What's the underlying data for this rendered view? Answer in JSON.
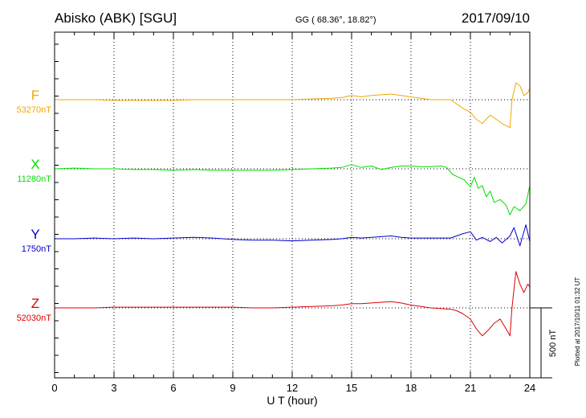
{
  "chart_data": {
    "type": "line",
    "station": "Abisko (ABK)  [SGU]",
    "coords": "GG ( 68.36°,  18.82°)",
    "date": "2017/09/10",
    "xlabel": "U T (hour)",
    "xlim": [
      0,
      24
    ],
    "x_ticks": [
      "0",
      "3",
      "6",
      "9",
      "12",
      "15",
      "18",
      "21",
      "24"
    ],
    "grid": true,
    "scale_bar": "500 nT",
    "plotted_note": "Plotted at 2017/10/11 01:32 UT",
    "colors": {
      "F": "#f0a800",
      "X": "#00e000",
      "Y": "#0000d0",
      "Z": "#e00000"
    },
    "series": [
      {
        "name": "F",
        "baseline_label": "53270nT",
        "baseline": 53270,
        "color": "#f0a800",
        "x": [
          0,
          1,
          2,
          3,
          4,
          5,
          6,
          7,
          8,
          9,
          10,
          11,
          12,
          13,
          14,
          14.5,
          15,
          15.5,
          16,
          16.5,
          17,
          17.5,
          18,
          18.5,
          19,
          19.5,
          20,
          20.3,
          20.6,
          21,
          21.3,
          21.6,
          22,
          22.3,
          22.6,
          23,
          23.1,
          23.3,
          23.5,
          23.7,
          23.9,
          24
        ],
        "values": [
          0,
          0,
          0,
          -5,
          -5,
          -5,
          -5,
          0,
          0,
          0,
          0,
          0,
          0,
          5,
          10,
          15,
          30,
          20,
          30,
          35,
          40,
          30,
          20,
          10,
          0,
          0,
          0,
          -30,
          -60,
          -90,
          -140,
          -170,
          -110,
          -140,
          -170,
          -200,
          0,
          120,
          100,
          30,
          50,
          80
        ]
      },
      {
        "name": "X",
        "baseline_label": "11280nT",
        "baseline": 11280,
        "color": "#00e000",
        "x": [
          0,
          1,
          2,
          3,
          4,
          5,
          6,
          7,
          8,
          9,
          10,
          11,
          12,
          13,
          14,
          14.5,
          15,
          15.5,
          16,
          16.5,
          17,
          17.5,
          18,
          18.5,
          19,
          19.5,
          19.8,
          20.1,
          20.4,
          20.7,
          21,
          21.2,
          21.4,
          21.6,
          21.8,
          22,
          22.2,
          22.5,
          22.8,
          23,
          23.2,
          23.5,
          23.8,
          24
        ],
        "values": [
          0,
          5,
          0,
          0,
          -5,
          -5,
          -10,
          -5,
          -10,
          -10,
          -10,
          -10,
          -5,
          0,
          5,
          10,
          30,
          10,
          20,
          -5,
          10,
          20,
          20,
          15,
          15,
          20,
          10,
          -40,
          -60,
          -80,
          -130,
          -60,
          -140,
          -120,
          -200,
          -160,
          -240,
          -220,
          -260,
          -330,
          -270,
          -300,
          -250,
          -120
        ]
      },
      {
        "name": "Y",
        "baseline_label": "1750nT",
        "baseline": 1750,
        "color": "#0000d0",
        "x": [
          0,
          1,
          2,
          3,
          4,
          5,
          6,
          7,
          8,
          9,
          10,
          11,
          12,
          13,
          14,
          14.5,
          15,
          15.5,
          16,
          16.5,
          17,
          17.5,
          18,
          18.5,
          19,
          19.5,
          20,
          20.3,
          20.6,
          21,
          21.3,
          21.6,
          22,
          22.3,
          22.6,
          23,
          23.2,
          23.5,
          23.8,
          24
        ],
        "values": [
          0,
          0,
          5,
          0,
          5,
          0,
          5,
          10,
          5,
          -5,
          -10,
          -10,
          -15,
          -10,
          -5,
          0,
          10,
          5,
          10,
          15,
          20,
          10,
          5,
          5,
          5,
          5,
          5,
          20,
          35,
          50,
          -10,
          10,
          -20,
          10,
          -30,
          20,
          80,
          -50,
          100,
          -20
        ]
      },
      {
        "name": "Z",
        "baseline_label": "52030nT",
        "baseline": 52030,
        "color": "#e00000",
        "x": [
          0,
          1,
          2,
          3,
          4,
          5,
          6,
          7,
          8,
          9,
          10,
          11,
          12,
          13,
          14,
          14.5,
          15,
          15.5,
          16,
          16.5,
          17,
          17.5,
          18,
          18.5,
          19,
          19.5,
          20,
          20.3,
          20.6,
          21,
          21.3,
          21.6,
          21.9,
          22.2,
          22.5,
          22.8,
          23,
          23.1,
          23.3,
          23.5,
          23.7,
          23.9,
          24
        ],
        "values": [
          0,
          0,
          0,
          5,
          5,
          5,
          5,
          5,
          5,
          5,
          0,
          0,
          5,
          10,
          15,
          20,
          30,
          30,
          35,
          40,
          45,
          35,
          20,
          10,
          0,
          -5,
          -10,
          -20,
          -40,
          -80,
          -150,
          -200,
          -160,
          -110,
          -80,
          -150,
          -200,
          0,
          260,
          170,
          110,
          170,
          150
        ]
      }
    ]
  }
}
